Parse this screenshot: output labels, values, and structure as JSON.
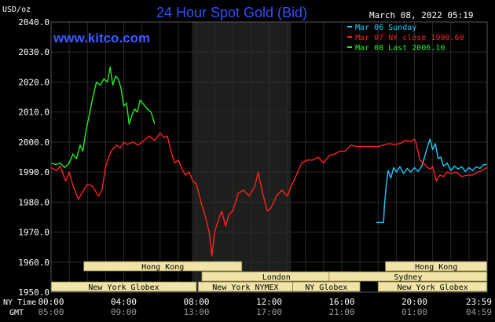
{
  "header": {
    "unit": "USD/oz",
    "title": "24 Hour Spot Gold (Bid)",
    "watermark": "www.kitco.com",
    "timestamp": "March 08, 2022 05:19"
  },
  "footer": {
    "ny_time_label": "NY Time",
    "gmt_label": "GMT"
  },
  "colors": {
    "background": "#000000",
    "plot_background": "#000000",
    "overnight_shade": "#1d1f1d",
    "grid": "#2a2a2a",
    "title": "#3050ff",
    "watermark": "#3a5cff",
    "sunday": "#22c8ff",
    "ny_close": "#ff2020",
    "last": "#22ee22",
    "session_bar": "#f0e4a8"
  },
  "chart_data": {
    "type": "line",
    "title": "24 Hour Spot Gold (Bid)",
    "ylabel": "USD/oz",
    "ylim": [
      1950,
      2040
    ],
    "xlim": [
      0,
      24
    ],
    "yticks": [
      "2040.0",
      "2030.0",
      "2020.0",
      "2010.0",
      "2000.0",
      "1990.0",
      "1980.0",
      "1970.0",
      "1960.0",
      "1950.0"
    ],
    "ytick_values": [
      2040,
      2030,
      2020,
      2010,
      2000,
      1990,
      1980,
      1970,
      1960,
      1950
    ],
    "xticks_ny": [
      "00:00",
      "04:00",
      "08:00",
      "12:00",
      "16:00",
      "20:00",
      "23:59"
    ],
    "xticks_gmt": [
      "05:00",
      "09:00",
      "13:00",
      "17:00",
      "21:00",
      "01:00",
      "04:59"
    ],
    "xtick_values": [
      0,
      4,
      8,
      12,
      16,
      20,
      24
    ],
    "grid": true,
    "legend_position": "top-right",
    "shaded_period": [
      7.75,
      13.2
    ],
    "sessions": [
      {
        "name": "Hong Kong",
        "row": 0,
        "start": 1.8,
        "end": 10.5
      },
      {
        "name": "Hong Kong",
        "row": 0,
        "start": 18.4,
        "end": 24
      },
      {
        "name": "London",
        "row": 1,
        "start": 8.3,
        "end": 16.5
      },
      {
        "name": "Sydney",
        "row": 1,
        "start": 15.3,
        "end": 24
      },
      {
        "name": "New York Globex",
        "row": 2,
        "start": 0,
        "end": 8.0
      },
      {
        "name": "New York NYMEX",
        "row": 2,
        "start": 8.1,
        "end": 13.3
      },
      {
        "name": "NY Globex",
        "row": 2,
        "start": 13.3,
        "end": 17.0
      },
      {
        "name": "New York Globex",
        "row": 2,
        "start": 18.0,
        "end": 24
      }
    ],
    "series": [
      {
        "name": "Mar 06 Sunday",
        "color": "#22c8ff",
        "points": [
          [
            17.9,
            1973.2
          ],
          [
            18.3,
            1973.2
          ],
          [
            18.35,
            1979
          ],
          [
            18.45,
            1986
          ],
          [
            18.55,
            1990.5
          ],
          [
            18.7,
            1988
          ],
          [
            18.85,
            1991.5
          ],
          [
            19.0,
            1990
          ],
          [
            19.2,
            1991.8
          ],
          [
            19.4,
            1989.5
          ],
          [
            19.6,
            1991.2
          ],
          [
            19.8,
            1990.0
          ],
          [
            20.0,
            1991.5
          ],
          [
            20.2,
            1990.2
          ],
          [
            20.4,
            1992.0
          ],
          [
            20.6,
            1996
          ],
          [
            20.75,
            1999
          ],
          [
            20.85,
            2001
          ],
          [
            21.0,
            1997.5
          ],
          [
            21.15,
            1999.5
          ],
          [
            21.3,
            1994.5
          ],
          [
            21.45,
            1995
          ],
          [
            21.6,
            1992
          ],
          [
            21.8,
            1993
          ],
          [
            22.0,
            1990.5
          ],
          [
            22.2,
            1992
          ],
          [
            22.4,
            1991
          ],
          [
            22.6,
            1991.8
          ],
          [
            22.8,
            1990.2
          ],
          [
            23.0,
            1991.5
          ],
          [
            23.2,
            1990.5
          ],
          [
            23.4,
            1991.8
          ],
          [
            23.6,
            1991.2
          ],
          [
            23.8,
            1992.5
          ],
          [
            23.99,
            1992.5
          ]
        ]
      },
      {
        "name": "Mar 07 NY close 1990.60",
        "color": "#ff2020",
        "points": [
          [
            0,
            1991.5
          ],
          [
            0.3,
            1990.5
          ],
          [
            0.5,
            1992
          ],
          [
            0.8,
            1987
          ],
          [
            1.0,
            1990
          ],
          [
            1.2,
            1985.5
          ],
          [
            1.5,
            1981
          ],
          [
            1.8,
            1984
          ],
          [
            2.0,
            1986
          ],
          [
            2.3,
            1985.2
          ],
          [
            2.6,
            1982
          ],
          [
            2.8,
            1984
          ],
          [
            3.0,
            1992
          ],
          [
            3.3,
            1997
          ],
          [
            3.6,
            1999
          ],
          [
            3.8,
            1998
          ],
          [
            4.0,
            2000
          ],
          [
            4.2,
            1999.2
          ],
          [
            4.5,
            2000
          ],
          [
            4.8,
            1999
          ],
          [
            5.1,
            2000.5
          ],
          [
            5.4,
            2002
          ],
          [
            5.7,
            2000.5
          ],
          [
            6.0,
            2003
          ],
          [
            6.2,
            2001.5
          ],
          [
            6.4,
            2002
          ],
          [
            6.6,
            1997
          ],
          [
            6.8,
            1993
          ],
          [
            7.0,
            1994
          ],
          [
            7.2,
            1991
          ],
          [
            7.4,
            1989
          ],
          [
            7.6,
            1990
          ],
          [
            7.8,
            1987
          ],
          [
            8.0,
            1986
          ],
          [
            8.3,
            1979
          ],
          [
            8.5,
            1975
          ],
          [
            8.7,
            1970
          ],
          [
            8.85,
            1962
          ],
          [
            9.0,
            1970
          ],
          [
            9.2,
            1974
          ],
          [
            9.4,
            1977
          ],
          [
            9.6,
            1972
          ],
          [
            9.8,
            1976
          ],
          [
            10.0,
            1977
          ],
          [
            10.3,
            1983
          ],
          [
            10.6,
            1984
          ],
          [
            10.9,
            1982
          ],
          [
            11.2,
            1985
          ],
          [
            11.4,
            1990
          ],
          [
            11.6,
            1984
          ],
          [
            11.9,
            1977
          ],
          [
            12.1,
            1978
          ],
          [
            12.4,
            1982
          ],
          [
            12.7,
            1984
          ],
          [
            13.0,
            1982
          ],
          [
            13.2,
            1985
          ],
          [
            13.5,
            1989
          ],
          [
            13.8,
            1993
          ],
          [
            14.1,
            1994
          ],
          [
            14.4,
            1994
          ],
          [
            14.7,
            1995
          ],
          [
            15.0,
            1993
          ],
          [
            15.3,
            1995.5
          ],
          [
            15.6,
            1996
          ],
          [
            15.9,
            1997
          ],
          [
            16.2,
            1997
          ],
          [
            16.5,
            1999
          ],
          [
            16.8,
            1998.5
          ],
          [
            17.1,
            1998.5
          ],
          [
            17.4,
            1998.5
          ],
          [
            17.7,
            1998.5
          ],
          [
            18.0,
            1998.5
          ],
          [
            18.3,
            1999
          ],
          [
            18.6,
            1999.5
          ],
          [
            18.9,
            1999.2
          ],
          [
            19.2,
            1999.5
          ],
          [
            19.5,
            2000.5
          ],
          [
            19.8,
            2000.2
          ],
          [
            20.0,
            2001
          ],
          [
            20.1,
            1999.5
          ],
          [
            20.3,
            1994
          ],
          [
            20.5,
            1993
          ],
          [
            20.7,
            1991.5
          ],
          [
            20.9,
            1991
          ],
          [
            21.0,
            1992
          ],
          [
            21.2,
            1987
          ],
          [
            21.4,
            1989
          ],
          [
            21.6,
            1988.5
          ],
          [
            21.8,
            1990
          ],
          [
            22.0,
            1989.5
          ],
          [
            22.3,
            1990
          ],
          [
            22.6,
            1988.5
          ],
          [
            22.9,
            1989
          ],
          [
            23.2,
            1989
          ],
          [
            23.5,
            1990
          ],
          [
            23.7,
            1990.5
          ],
          [
            23.99,
            1991.5
          ]
        ]
      },
      {
        "name": "Mar 08 Last 2006.10",
        "color": "#22ee22",
        "points": [
          [
            0,
            1993
          ],
          [
            0.25,
            1992.5
          ],
          [
            0.5,
            1993
          ],
          [
            0.75,
            1991.5
          ],
          [
            1.0,
            1993
          ],
          [
            1.2,
            1996
          ],
          [
            1.4,
            1994.5
          ],
          [
            1.6,
            1999
          ],
          [
            1.75,
            1997
          ],
          [
            1.9,
            2003
          ],
          [
            2.1,
            2009
          ],
          [
            2.3,
            2015
          ],
          [
            2.5,
            2020
          ],
          [
            2.7,
            2019
          ],
          [
            2.9,
            2021
          ],
          [
            3.1,
            2020
          ],
          [
            3.25,
            2025
          ],
          [
            3.4,
            2019
          ],
          [
            3.55,
            2022
          ],
          [
            3.7,
            2021
          ],
          [
            3.85,
            2018
          ],
          [
            4.0,
            2012
          ],
          [
            4.15,
            2013
          ],
          [
            4.3,
            2006
          ],
          [
            4.45,
            2009
          ],
          [
            4.6,
            2011
          ],
          [
            4.75,
            2010
          ],
          [
            4.9,
            2014
          ],
          [
            5.1,
            2012.5
          ],
          [
            5.3,
            2011
          ],
          [
            5.5,
            2010
          ],
          [
            5.7,
            2006.1
          ]
        ]
      }
    ]
  }
}
